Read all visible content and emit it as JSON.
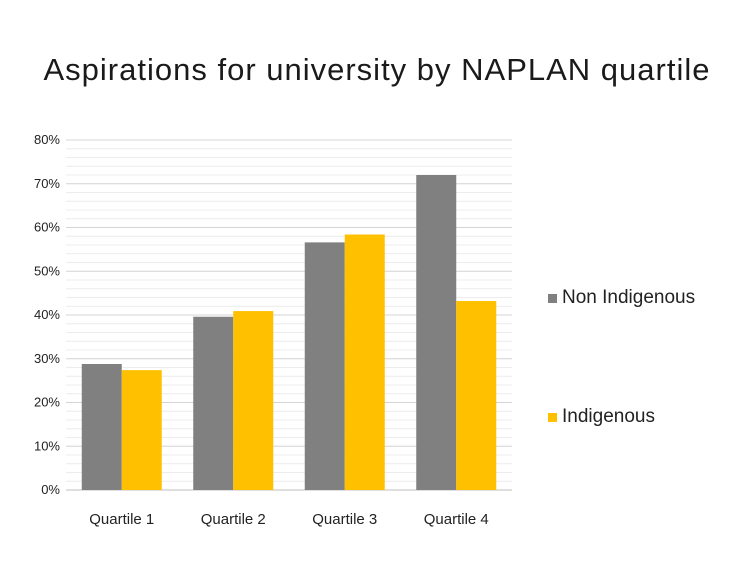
{
  "chart_data": {
    "type": "bar",
    "title": "Aspirations for university by NAPLAN quartile",
    "xlabel": "",
    "ylabel": "",
    "categories": [
      "Quartile 1",
      "Quartile 2",
      "Quartile 3",
      "Quartile 4"
    ],
    "series": [
      {
        "name": "Non Indigenous",
        "color": "#808080",
        "values": [
          28.8,
          39.6,
          56.6,
          72.0
        ]
      },
      {
        "name": "Indigenous",
        "color": "#FFC000",
        "values": [
          27.4,
          40.9,
          58.4,
          43.2
        ]
      }
    ],
    "ylim": [
      0,
      80
    ],
    "yticks": [
      0,
      10,
      20,
      30,
      40,
      50,
      60,
      70,
      80
    ],
    "ytick_format": "percent",
    "grid": true,
    "legend_position": "right"
  }
}
